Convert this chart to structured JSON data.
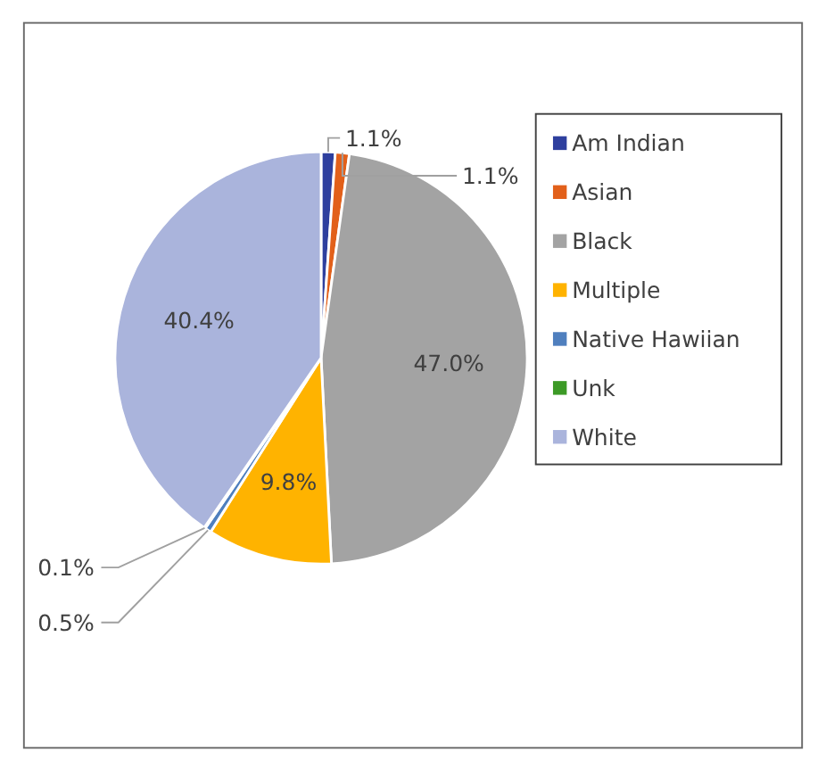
{
  "chart_data": {
    "type": "pie",
    "categories": [
      "Am Indian",
      "Asian",
      "Black",
      "Multiple",
      "Native Hawiian",
      "Unk",
      "White"
    ],
    "values": [
      1.1,
      1.1,
      47.0,
      9.8,
      0.5,
      0.1,
      40.4
    ],
    "colors": [
      "#2e3f9e",
      "#e2601a",
      "#a3a3a3",
      "#ffb300",
      "#4f7fbe",
      "#3c9a26",
      "#aab4dc"
    ],
    "value_labels": [
      "1.1%",
      "1.1%",
      "47.0%",
      "9.8%",
      "0.5%",
      "0.1%",
      "40.4%"
    ],
    "legend": "right"
  }
}
